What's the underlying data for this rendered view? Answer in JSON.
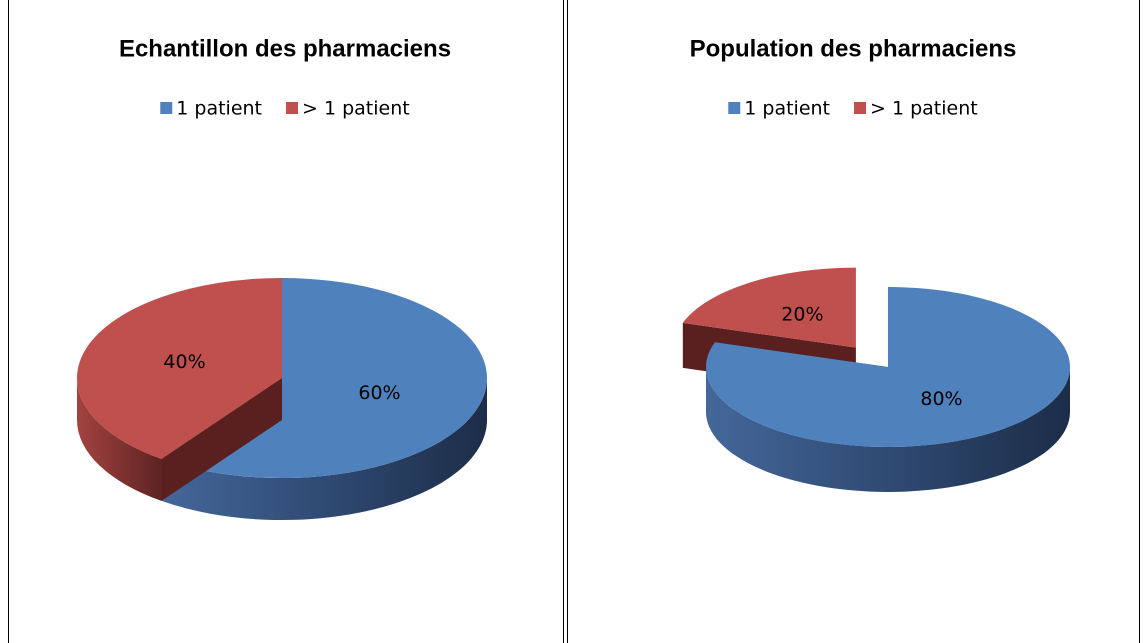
{
  "chart_data": [
    {
      "type": "pie",
      "title": "Echantillon des pharmaciens",
      "categories": [
        "1 patient",
        "> 1 patient"
      ],
      "values": [
        60,
        40
      ],
      "value_labels": [
        "60%",
        "40%"
      ],
      "colors": [
        "#4f81bd",
        "#c0504d"
      ],
      "legend": "top",
      "explode": [
        false,
        false
      ]
    },
    {
      "type": "pie",
      "title": "Population des pharmaciens",
      "categories": [
        "1 patient",
        "> 1 patient"
      ],
      "values": [
        80,
        20
      ],
      "value_labels": [
        "80%",
        "20%"
      ],
      "colors": [
        "#4f81bd",
        "#c0504d"
      ],
      "legend": "top",
      "explode": [
        false,
        true
      ]
    }
  ]
}
